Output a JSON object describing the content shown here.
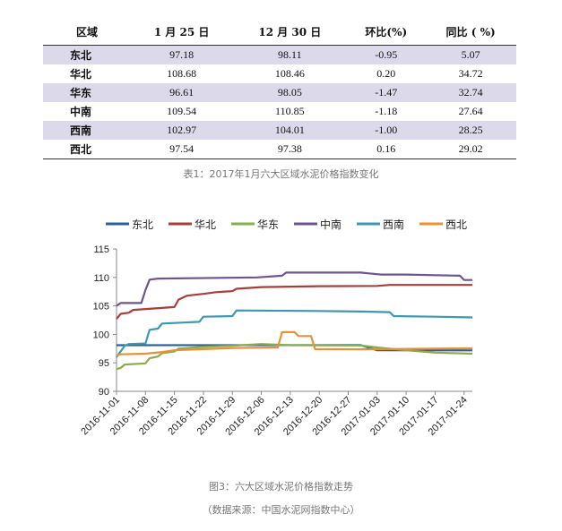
{
  "table": {
    "headers": [
      "区域",
      "1 月 25 日",
      "12 月 30 日",
      "环比(%)",
      "同比 ( %)"
    ],
    "rows": [
      [
        "东北",
        "97.18",
        "98.11",
        "-0.95",
        "5.07"
      ],
      [
        "华北",
        "108.68",
        "108.46",
        "0.20",
        "34.72"
      ],
      [
        "华东",
        "96.61",
        "98.05",
        "-1.47",
        "32.74"
      ],
      [
        "中南",
        "109.54",
        "110.85",
        "-1.18",
        "27.64"
      ],
      [
        "西南",
        "102.97",
        "104.01",
        "-1.00",
        "28.25"
      ],
      [
        "西北",
        "97.54",
        "97.38",
        "0.16",
        "29.02"
      ]
    ],
    "caption": "表1：2017年1月六大区域水泥价格指数变化"
  },
  "figure": {
    "caption": "图3：六大区域水泥价格指数走势",
    "source": "（数据来源：中国水泥网指数中心）"
  },
  "chart_data": {
    "type": "line",
    "title": "",
    "xlabel": "",
    "ylabel": "",
    "ylim": [
      90,
      115
    ],
    "yticks": [
      90,
      95,
      100,
      105,
      110,
      115
    ],
    "xlim": [
      "2016-11-01",
      "2017-01-26"
    ],
    "xticks": [
      "2016-11-01",
      "2016-11-08",
      "2016-11-15",
      "2016-11-22",
      "2016-11-29",
      "2016-12-06",
      "2016-12-13",
      "2016-12-20",
      "2016-12-27",
      "2017-01-03",
      "2017-01-10",
      "2017-01-17",
      "2017-01-24"
    ],
    "legend": "top",
    "grid": false,
    "series": [
      {
        "name": "东北",
        "color": "#2e5f9a",
        "points": [
          [
            "2016-11-01",
            98.1
          ],
          [
            "2016-12-30",
            98.11
          ],
          [
            "2017-01-03",
            97.2
          ],
          [
            "2017-01-26",
            97.18
          ]
        ]
      },
      {
        "name": "华北",
        "color": "#a53f3c",
        "points": [
          [
            "2016-11-01",
            102.7
          ],
          [
            "2016-11-02",
            103.6
          ],
          [
            "2016-11-04",
            103.8
          ],
          [
            "2016-11-05",
            104.3
          ],
          [
            "2016-11-15",
            104.8
          ],
          [
            "2016-11-16",
            106.1
          ],
          [
            "2016-11-18",
            106.8
          ],
          [
            "2016-11-22",
            107.1
          ],
          [
            "2016-11-25",
            107.4
          ],
          [
            "2016-11-29",
            107.6
          ],
          [
            "2016-11-30",
            108.0
          ],
          [
            "2016-12-06",
            108.3
          ],
          [
            "2016-12-20",
            108.46
          ],
          [
            "2017-01-03",
            108.5
          ],
          [
            "2017-01-06",
            108.68
          ],
          [
            "2017-01-26",
            108.68
          ]
        ]
      },
      {
        "name": "华东",
        "color": "#8bac4b",
        "points": [
          [
            "2016-11-01",
            93.9
          ],
          [
            "2016-11-02",
            94.1
          ],
          [
            "2016-11-03",
            94.7
          ],
          [
            "2016-11-08",
            94.9
          ],
          [
            "2016-11-09",
            95.8
          ],
          [
            "2016-11-11",
            96.1
          ],
          [
            "2016-11-12",
            96.7
          ],
          [
            "2016-11-15",
            97.0
          ],
          [
            "2016-11-16",
            97.5
          ],
          [
            "2016-11-22",
            97.8
          ],
          [
            "2016-11-29",
            98.0
          ],
          [
            "2016-12-06",
            98.3
          ],
          [
            "2016-12-13",
            98.1
          ],
          [
            "2016-12-30",
            98.05
          ],
          [
            "2017-01-03",
            97.7
          ],
          [
            "2017-01-10",
            97.2
          ],
          [
            "2017-01-17",
            96.8
          ],
          [
            "2017-01-26",
            96.61
          ]
        ]
      },
      {
        "name": "中南",
        "color": "#6e558f",
        "points": [
          [
            "2016-11-01",
            105.0
          ],
          [
            "2016-11-02",
            105.5
          ],
          [
            "2016-11-07",
            105.5
          ],
          [
            "2016-11-08",
            107.8
          ],
          [
            "2016-11-09",
            109.6
          ],
          [
            "2016-11-11",
            109.8
          ],
          [
            "2016-12-05",
            110.0
          ],
          [
            "2016-12-11",
            110.3
          ],
          [
            "2016-12-12",
            110.85
          ],
          [
            "2016-12-30",
            110.85
          ],
          [
            "2017-01-01",
            110.7
          ],
          [
            "2017-01-04",
            110.5
          ],
          [
            "2017-01-10",
            110.5
          ],
          [
            "2017-01-23",
            110.3
          ],
          [
            "2017-01-24",
            109.54
          ],
          [
            "2017-01-26",
            109.54
          ]
        ]
      },
      {
        "name": "西南",
        "color": "#3e98ae",
        "points": [
          [
            "2016-11-01",
            96.0
          ],
          [
            "2016-11-03",
            98.0
          ],
          [
            "2016-11-04",
            98.3
          ],
          [
            "2016-11-08",
            98.4
          ],
          [
            "2016-11-09",
            100.8
          ],
          [
            "2016-11-11",
            101.0
          ],
          [
            "2016-11-12",
            101.9
          ],
          [
            "2016-11-15",
            102.0
          ],
          [
            "2016-11-21",
            102.2
          ],
          [
            "2016-11-22",
            103.1
          ],
          [
            "2016-11-29",
            103.2
          ],
          [
            "2016-11-30",
            104.2
          ],
          [
            "2016-12-20",
            104.1
          ],
          [
            "2016-12-30",
            104.01
          ],
          [
            "2017-01-06",
            103.9
          ],
          [
            "2017-01-07",
            103.2
          ],
          [
            "2017-01-17",
            103.1
          ],
          [
            "2017-01-26",
            102.97
          ]
        ]
      },
      {
        "name": "西北",
        "color": "#e6913a",
        "points": [
          [
            "2016-11-01",
            96.3
          ],
          [
            "2016-11-02",
            96.5
          ],
          [
            "2016-11-08",
            96.6
          ],
          [
            "2016-11-12",
            96.9
          ],
          [
            "2016-11-15",
            97.2
          ],
          [
            "2016-11-22",
            97.4
          ],
          [
            "2016-11-29",
            97.6
          ],
          [
            "2016-12-10",
            97.7
          ],
          [
            "2016-12-11",
            100.4
          ],
          [
            "2016-12-14",
            100.4
          ],
          [
            "2016-12-15",
            99.7
          ],
          [
            "2016-12-18",
            99.7
          ],
          [
            "2016-12-19",
            97.4
          ],
          [
            "2016-12-30",
            97.38
          ],
          [
            "2017-01-26",
            97.54
          ]
        ]
      }
    ]
  }
}
